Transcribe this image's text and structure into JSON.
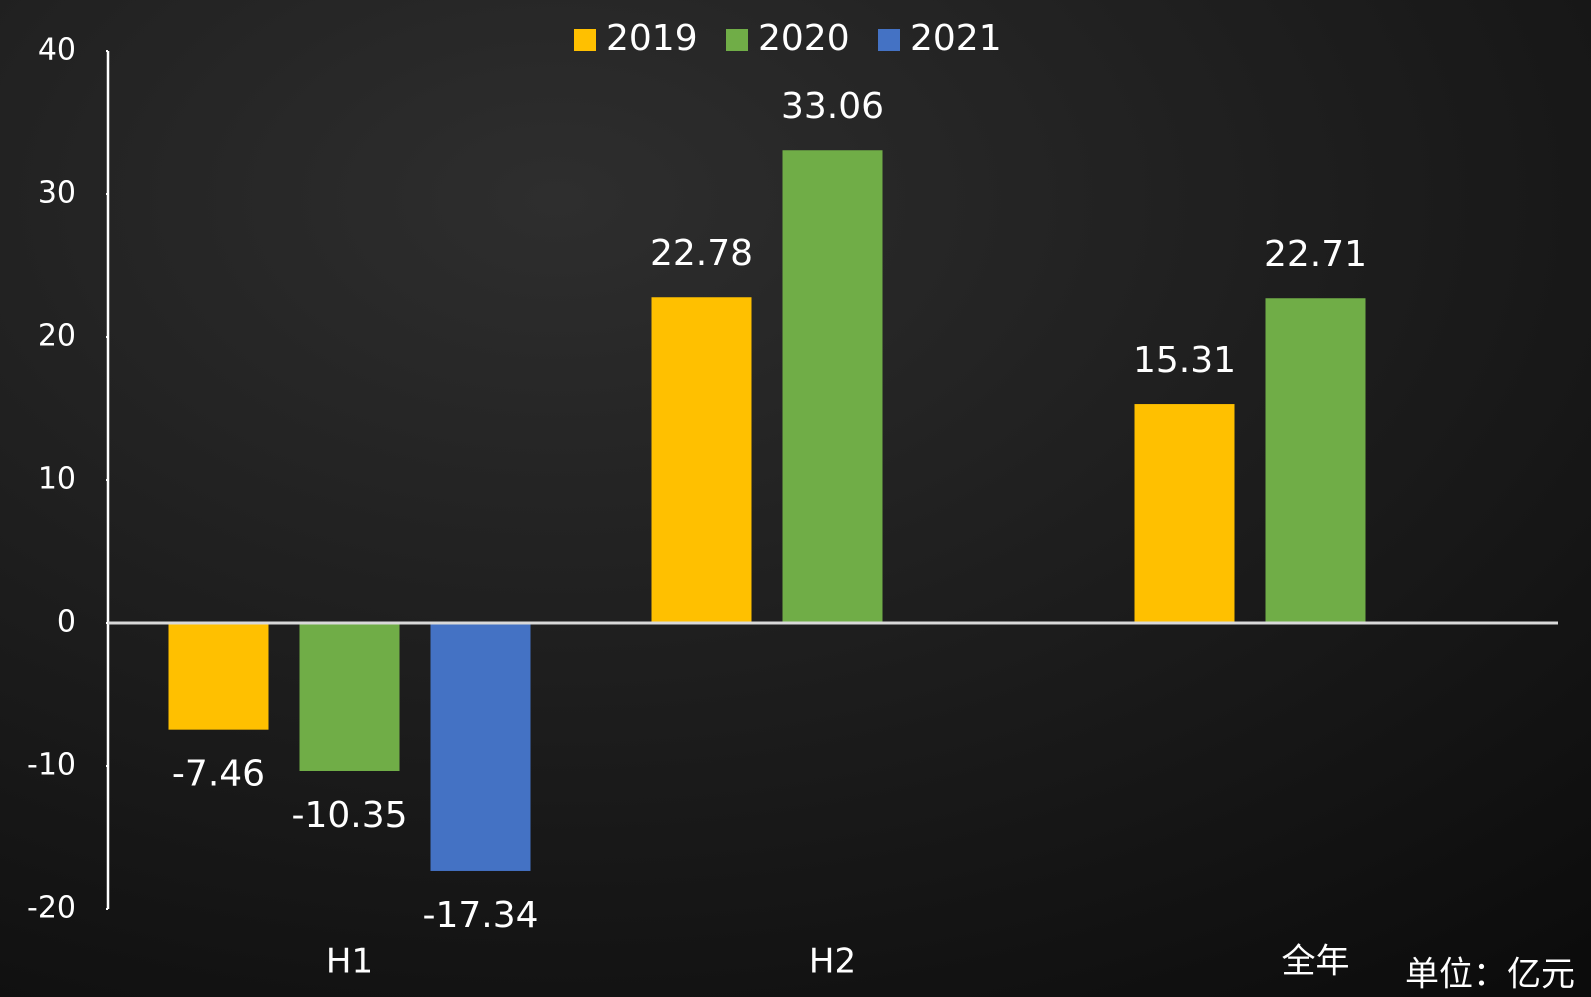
{
  "chart_data": {
    "type": "bar",
    "categories": [
      "H1",
      "H2",
      "全年"
    ],
    "series": [
      {
        "name": "2019",
        "color": "#ffc000",
        "values": [
          -7.46,
          22.78,
          15.31
        ]
      },
      {
        "name": "2020",
        "color": "#70ad47",
        "values": [
          -10.35,
          33.06,
          22.71
        ]
      },
      {
        "name": "2021",
        "color": "#4472c4",
        "values": [
          -17.34,
          null,
          null
        ]
      }
    ],
    "ylim": [
      -20,
      40
    ],
    "yticks": [
      -20,
      -10,
      0,
      10,
      20,
      30,
      40
    ],
    "grid": false,
    "legend": "top",
    "annotation": "单位：亿元"
  }
}
